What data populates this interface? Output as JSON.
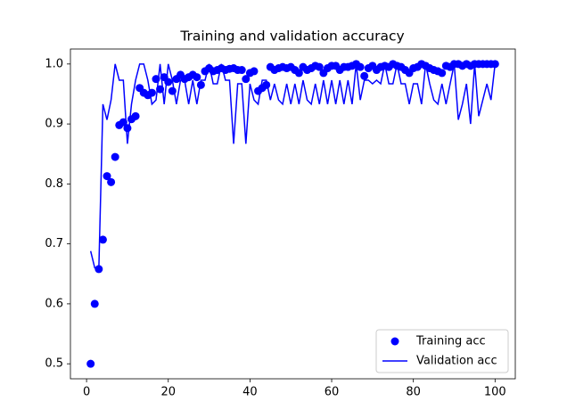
{
  "chart_data": {
    "type": "line",
    "title": "Training and validation accuracy",
    "x": [
      1,
      2,
      3,
      4,
      5,
      6,
      7,
      8,
      9,
      10,
      11,
      12,
      13,
      14,
      15,
      16,
      17,
      18,
      19,
      20,
      21,
      22,
      23,
      24,
      25,
      26,
      27,
      28,
      29,
      30,
      31,
      32,
      33,
      34,
      35,
      36,
      37,
      38,
      39,
      40,
      41,
      42,
      43,
      44,
      45,
      46,
      47,
      48,
      49,
      50,
      51,
      52,
      53,
      54,
      55,
      56,
      57,
      58,
      59,
      60,
      61,
      62,
      63,
      64,
      65,
      66,
      67,
      68,
      69,
      70,
      71,
      72,
      73,
      74,
      75,
      76,
      77,
      78,
      79,
      80,
      81,
      82,
      83,
      84,
      85,
      86,
      87,
      88,
      89,
      90,
      91,
      92,
      93,
      94,
      95,
      96,
      97,
      98,
      99,
      100
    ],
    "series": [
      {
        "name": "Training acc",
        "color": "#0000ff",
        "style": "dots",
        "values": [
          0.5,
          0.6,
          0.658,
          0.707,
          0.813,
          0.803,
          0.845,
          0.898,
          0.903,
          0.893,
          0.908,
          0.913,
          0.96,
          0.952,
          0.948,
          0.952,
          0.975,
          0.958,
          0.978,
          0.97,
          0.955,
          0.975,
          0.982,
          0.975,
          0.978,
          0.982,
          0.978,
          0.965,
          0.988,
          0.993,
          0.988,
          0.99,
          0.993,
          0.99,
          0.992,
          0.993,
          0.99,
          0.99,
          0.975,
          0.985,
          0.988,
          0.955,
          0.96,
          0.965,
          0.995,
          0.99,
          0.993,
          0.995,
          0.993,
          0.995,
          0.99,
          0.985,
          0.995,
          0.99,
          0.993,
          0.997,
          0.995,
          0.985,
          0.993,
          0.997,
          0.997,
          0.99,
          0.995,
          0.995,
          0.997,
          1.0,
          0.995,
          0.98,
          0.993,
          0.997,
          0.99,
          0.995,
          0.997,
          0.995,
          1.0,
          0.997,
          0.995,
          0.99,
          0.985,
          0.993,
          0.995,
          1.0,
          0.997,
          0.993,
          0.99,
          0.988,
          0.985,
          0.997,
          0.995,
          1.0,
          1.0,
          0.997,
          1.0,
          0.997,
          1.0,
          1.0,
          1.0,
          1.0,
          1.0,
          1.0
        ]
      },
      {
        "name": "Validation acc",
        "color": "#0000ff",
        "style": "line",
        "values": [
          0.688,
          0.66,
          0.658,
          0.933,
          0.907,
          0.94,
          1.0,
          0.973,
          0.973,
          0.867,
          0.933,
          0.973,
          1.0,
          1.0,
          0.973,
          0.933,
          0.94,
          1.0,
          0.933,
          1.0,
          0.973,
          0.933,
          0.973,
          0.973,
          0.933,
          0.973,
          0.933,
          0.973,
          0.973,
          1.0,
          0.967,
          0.967,
          1.0,
          0.973,
          0.973,
          0.867,
          0.967,
          0.967,
          0.867,
          0.967,
          0.94,
          0.933,
          0.973,
          0.973,
          0.94,
          0.967,
          0.94,
          0.933,
          0.967,
          0.933,
          0.967,
          0.933,
          0.973,
          0.94,
          0.933,
          0.967,
          0.933,
          0.973,
          0.933,
          0.973,
          0.933,
          0.973,
          0.933,
          0.973,
          0.933,
          1.0,
          0.94,
          0.973,
          0.973,
          0.967,
          0.973,
          0.967,
          1.0,
          0.967,
          0.967,
          1.0,
          0.967,
          0.967,
          0.933,
          0.967,
          0.967,
          0.933,
          1.0,
          0.967,
          0.94,
          0.933,
          0.967,
          0.933,
          0.967,
          1.0,
          0.907,
          0.933,
          0.967,
          0.9,
          1.0,
          0.913,
          0.94,
          0.967,
          0.94,
          1.0
        ]
      }
    ],
    "xlim": [
      -3.95,
      104.95
    ],
    "xticks": [
      0,
      20,
      40,
      60,
      80,
      100
    ],
    "ylim": [
      0.475,
      1.025
    ],
    "yticks": [
      0.5,
      0.6,
      0.7,
      0.8,
      0.9,
      {
        "value": 1,
        "label": "1.0"
      }
    ],
    "legend": "lower right",
    "grid": false
  }
}
